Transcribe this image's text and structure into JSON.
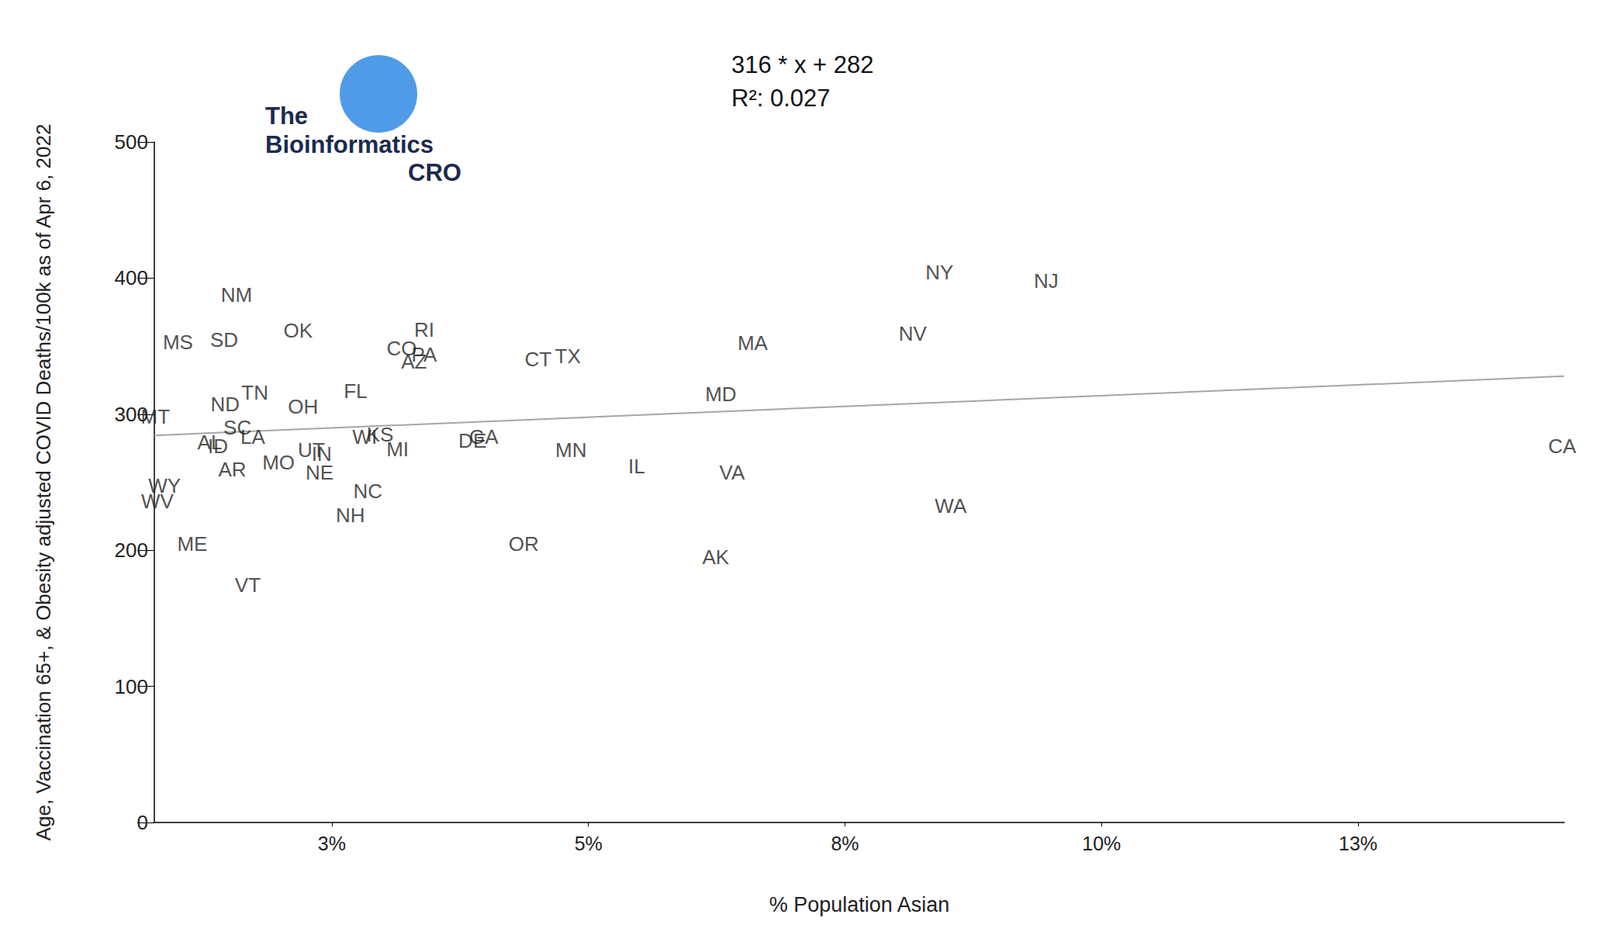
{
  "chart_data": {
    "type": "scatter",
    "logo_text": [
      "The",
      "Bioinformatics",
      "CRO"
    ],
    "annotations": [
      "316 * x + 282",
      "R²: 0.027"
    ],
    "x_label": "% Population Asian",
    "y_label": "Age, Vaccination 65+, & Obesity adjusted COVID Deaths/100k as of Apr 6, 2022",
    "labels": [
      "MS",
      "NM",
      "SD",
      "OK",
      "RI",
      "CO",
      "PA",
      "AZ",
      "CT",
      "TX",
      "MA",
      "MD",
      "NY",
      "NJ",
      "NV",
      "CA",
      "TN",
      "ND",
      "FL",
      "OH",
      "MT",
      "SC",
      "ID",
      "AL",
      "LA",
      "WI",
      "KS",
      "MI",
      "UT",
      "IN",
      "MO",
      "NE",
      "AR",
      "GA",
      "DE",
      "MN",
      "IL",
      "VA",
      "WA",
      "NC",
      "NH",
      "WY",
      "WV",
      "ME",
      "VT",
      "OR",
      "AK"
    ],
    "x": [
      1.0,
      1.57,
      1.45,
      2.17,
      3.4,
      3.18,
      3.4,
      3.3,
      4.51,
      4.8,
      6.6,
      6.29,
      8.42,
      9.46,
      8.16,
      14.49,
      1.75,
      1.46,
      2.73,
      2.22,
      0.78,
      1.58,
      1.39,
      1.31,
      1.73,
      2.82,
      2.97,
      3.14,
      2.3,
      2.4,
      1.98,
      2.38,
      1.53,
      3.98,
      3.87,
      4.83,
      5.47,
      6.4,
      8.53,
      2.85,
      2.68,
      0.87,
      0.8,
      1.14,
      1.68,
      4.37,
      6.24
    ],
    "values": [
      353,
      387.6,
      354.6,
      361.3,
      362,
      348.6,
      344,
      338.8,
      340.3,
      342.6,
      352.3,
      314.8,
      404,
      398,
      359,
      276.6,
      315.6,
      307.3,
      317,
      305.8,
      298.4,
      290,
      276.6,
      279.6,
      283.4,
      283.4,
      284.9,
      274.4,
      273.6,
      270.6,
      264.6,
      257.1,
      259.4,
      283.4,
      280.4,
      273.6,
      261.6,
      257.1,
      232.4,
      243.6,
      225.6,
      247.4,
      236.1,
      204.6,
      174.7,
      204.6,
      194.9
    ],
    "marker": "none",
    "trend_line": {
      "x": [
        0.77,
        14.51
      ],
      "values": [
        284.4,
        327.9
      ],
      "color": "#a6a6a6"
    },
    "xlim": [
      0.77,
      14.51
    ],
    "xticks": [
      {
        "value": 2.5,
        "label": "3%"
      },
      {
        "value": 5,
        "label": "5%"
      },
      {
        "value": 7.5,
        "label": "8%"
      },
      {
        "value": 10,
        "label": "10%"
      },
      {
        "value": 12.5,
        "label": "13%"
      }
    ],
    "ylim": [
      0,
      500
    ],
    "yticks": [
      0,
      100,
      200,
      300,
      400,
      500
    ],
    "grid": false
  }
}
